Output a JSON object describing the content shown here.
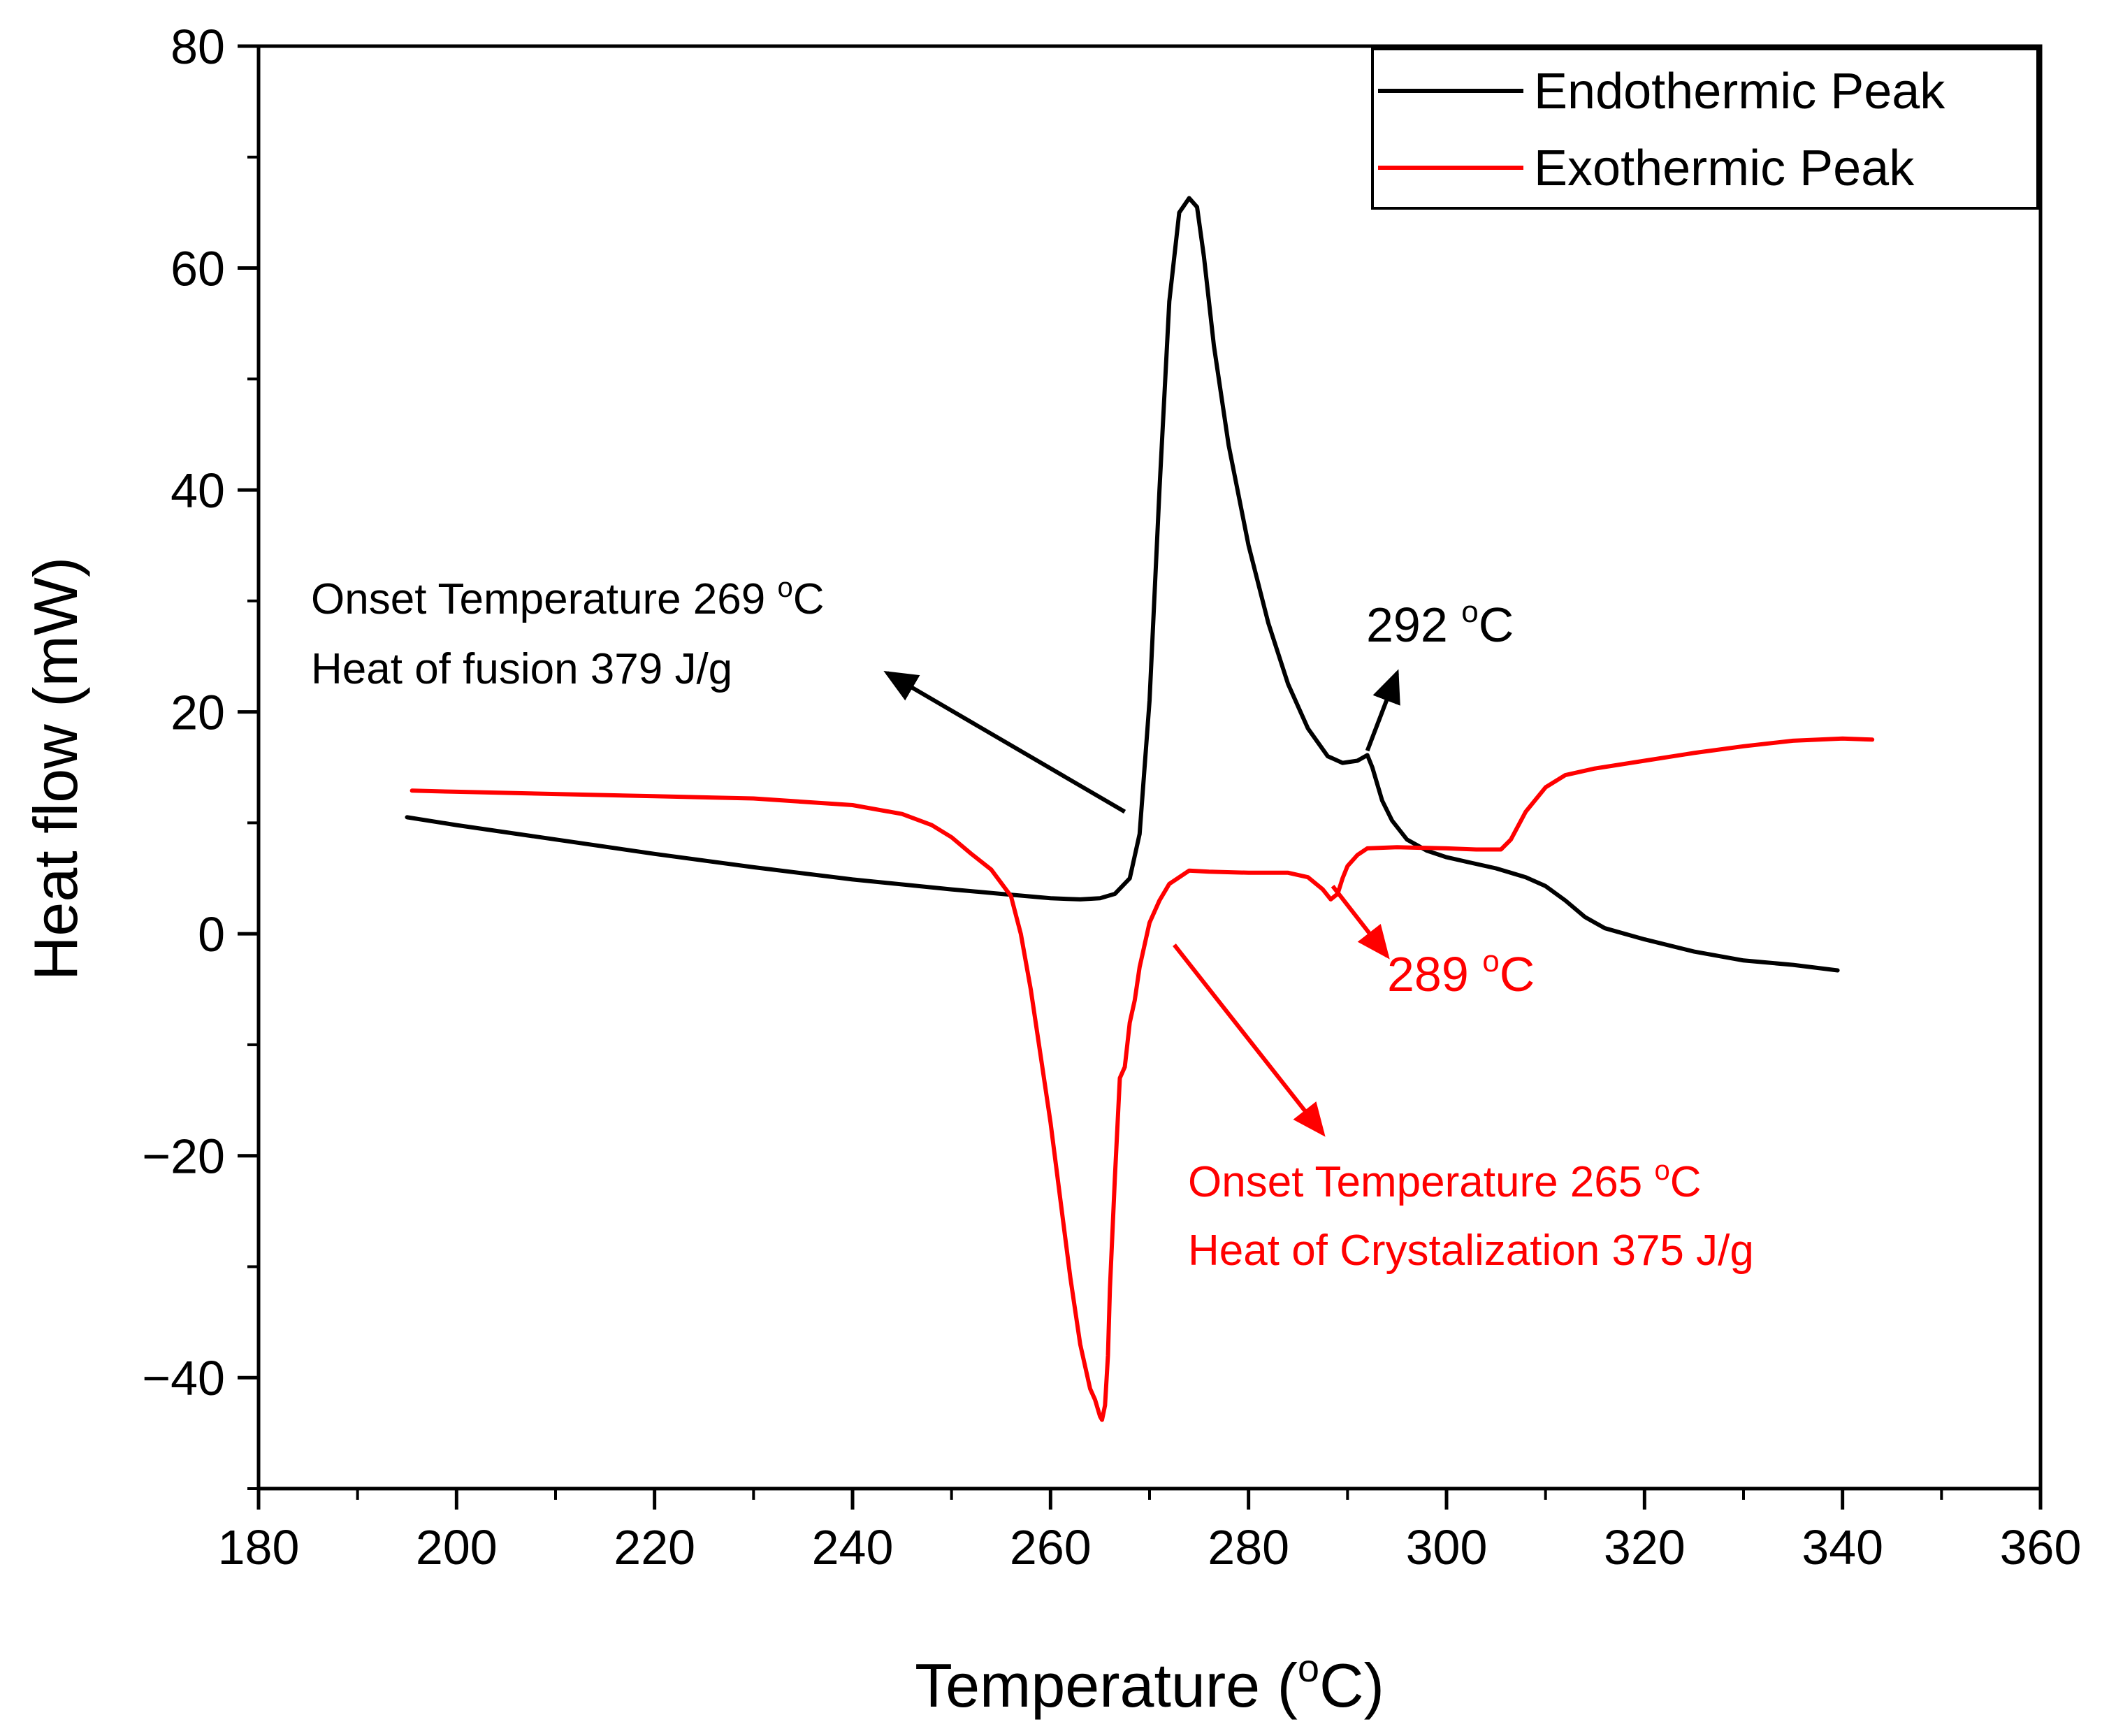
{
  "chart_data": {
    "type": "line",
    "title": "",
    "xlabel": "Temperature (",
    "xlabel_sup": "o",
    "xlabel_end": "C)",
    "ylabel": "Heat flow (mW)",
    "xlim": [
      180,
      360
    ],
    "ylim": [
      -50,
      80
    ],
    "xticks": [
      180,
      200,
      220,
      240,
      260,
      280,
      300,
      320,
      340,
      360
    ],
    "xtick_labels": [
      "180",
      "200",
      "220",
      "240",
      "260",
      "280",
      "300",
      "320",
      "340",
      "360"
    ],
    "yticks": [
      -40,
      -20,
      0,
      20,
      40,
      60,
      80
    ],
    "ytick_labels": [
      "−40",
      "−20",
      "0",
      "20",
      "40",
      "60",
      "80"
    ],
    "legend": {
      "position": "top-right",
      "entries": [
        "Endothermic Peak",
        "Exothermic Peak"
      ]
    },
    "series": [
      {
        "name": "Endothermic Peak",
        "color": "#000000",
        "x": [
          195,
          200,
          210,
          220,
          230,
          240,
          250,
          255,
          260,
          263,
          265,
          266.5,
          268,
          269,
          270,
          271,
          272,
          273,
          274,
          274.8,
          275.5,
          276.5,
          278,
          280,
          282,
          284,
          286,
          288,
          289.5,
          291,
          292,
          292.5,
          293.5,
          294.5,
          296,
          298,
          300,
          302,
          305,
          308,
          310,
          312,
          314,
          316,
          320,
          325,
          330,
          335,
          339.5
        ],
        "y": [
          10.5,
          9.8,
          8.5,
          7.2,
          6.0,
          4.9,
          4.0,
          3.6,
          3.2,
          3.1,
          3.2,
          3.6,
          5.0,
          9.0,
          21.0,
          40.0,
          57.0,
          65.0,
          66.3,
          65.5,
          61.0,
          53.0,
          44.0,
          35.0,
          28.0,
          22.5,
          18.5,
          16.0,
          15.4,
          15.6,
          16.1,
          15.0,
          12.0,
          10.2,
          8.5,
          7.5,
          6.9,
          6.5,
          5.9,
          5.1,
          4.3,
          3.0,
          1.5,
          0.5,
          -0.5,
          -1.6,
          -2.4,
          -2.8,
          -3.3
        ]
      },
      {
        "name": "Exothermic Peak",
        "color": "#ff0000",
        "x": [
          195.5,
          200,
          210,
          220,
          230,
          240,
          245,
          248,
          250,
          252,
          254,
          256,
          257,
          258,
          259,
          260,
          261,
          262,
          263,
          264,
          264.5,
          265,
          265.2,
          265.5,
          265.8,
          266,
          266.5,
          267,
          267.5,
          268,
          268.5,
          269,
          269.5,
          270,
          271,
          272,
          274,
          276,
          280,
          284,
          286,
          287.5,
          288.3,
          289,
          289.5,
          290,
          291,
          292,
          295,
          300,
          303,
          305.5,
          306.5,
          308,
          310,
          312,
          315,
          320,
          325,
          330,
          335,
          340,
          343
        ],
        "y": [
          12.9,
          12.8,
          12.6,
          12.4,
          12.2,
          11.6,
          10.8,
          9.8,
          8.7,
          7.2,
          5.8,
          3.4,
          0.0,
          -5.0,
          -11.0,
          -17.0,
          -24.0,
          -31.0,
          -37.0,
          -41.0,
          -42.0,
          -43.5,
          -43.8,
          -42.5,
          -38.0,
          -32.0,
          -22.0,
          -13.0,
          -12.0,
          -8.0,
          -6.0,
          -3.0,
          -1.0,
          1.0,
          3.0,
          4.5,
          5.7,
          5.6,
          5.5,
          5.5,
          5.1,
          4.0,
          3.1,
          3.6,
          5.0,
          6.1,
          7.1,
          7.7,
          7.8,
          7.7,
          7.6,
          7.6,
          8.5,
          11.0,
          13.2,
          14.3,
          14.9,
          15.6,
          16.3,
          16.9,
          17.4,
          17.6,
          17.5
        ]
      }
    ],
    "annotations": [
      {
        "id": "endo_onset",
        "color": "#000000",
        "lines": [
          "Onset Temperature 269 ",
          "Heat of fusion 379 J/g"
        ],
        "sup": "o",
        "unit": "C",
        "arrow_from": [
          267.5,
          11
        ],
        "arrow_to": [
          243.5,
          23.5
        ]
      },
      {
        "id": "endo_292",
        "color": "#000000",
        "text": "292 ",
        "sup": "o",
        "unit": "C",
        "arrow_from": [
          292,
          16.5
        ],
        "arrow_to": [
          295,
          23.5
        ]
      },
      {
        "id": "exo_289",
        "color": "#ff0000",
        "text": "289 ",
        "sup": "o",
        "unit": "C",
        "arrow_from": [
          288.5,
          4.3
        ],
        "arrow_to": [
          294,
          -2
        ]
      },
      {
        "id": "exo_onset",
        "color": "#ff0000",
        "lines": [
          "Onset Temperature 265 ",
          "Heat of Crystalization 375 J/g"
        ],
        "sup": "o",
        "unit": "C",
        "arrow_from": [
          272.5,
          -1
        ],
        "arrow_to": [
          287.5,
          -18
        ]
      }
    ]
  }
}
